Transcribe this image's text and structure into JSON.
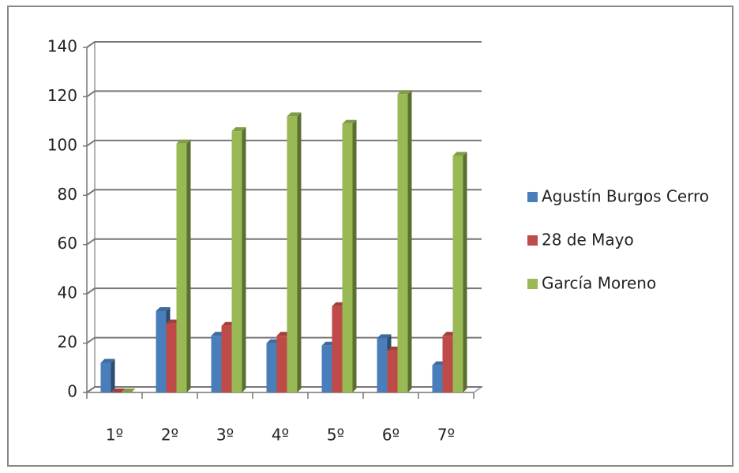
{
  "chart_data": {
    "type": "bar",
    "categories": [
      "1º",
      "2º",
      "3º",
      "4º",
      "5º",
      "6º",
      "7º"
    ],
    "series": [
      {
        "name": "Agustín Burgos Cerro",
        "color": "#4a7ebb",
        "values": [
          12,
          33,
          23,
          20,
          19,
          22,
          11
        ]
      },
      {
        "name": "28 de Mayo",
        "color": "#be4b48",
        "values": [
          0,
          28,
          27,
          23,
          35,
          17,
          23
        ]
      },
      {
        "name": "García Moreno",
        "color": "#98b954",
        "values": [
          0,
          101,
          106,
          112,
          109,
          121,
          96
        ]
      }
    ],
    "ylim": [
      0,
      140
    ],
    "yticks": [
      0,
      20,
      40,
      60,
      80,
      100,
      120,
      140
    ],
    "grid": true,
    "legend": "right"
  }
}
